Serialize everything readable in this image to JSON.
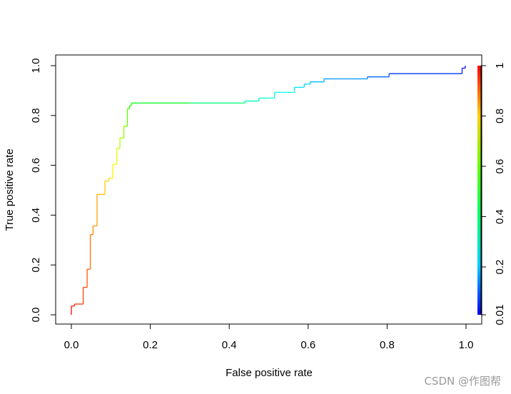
{
  "chart_data": {
    "type": "line",
    "title": "",
    "xlabel": "False positive rate",
    "ylabel": "True positive rate",
    "xlim": [
      0.0,
      1.0
    ],
    "ylim": [
      0.0,
      1.0
    ],
    "x_ticks": [
      "0.0",
      "0.2",
      "0.4",
      "0.6",
      "0.8",
      "1.0"
    ],
    "y_ticks": [
      "0.0",
      "0.2",
      "0.4",
      "0.6",
      "0.8",
      "1.0"
    ],
    "grid": false,
    "legend": "none",
    "colorbar": {
      "position": "right",
      "tick_labels": [
        "0.01",
        "0.2",
        "0.4",
        "0.6",
        "0.8",
        "1"
      ],
      "tick_values": [
        0.01,
        0.2,
        0.4,
        0.6,
        0.8,
        1.0
      ],
      "color_low": "#0000ff",
      "color_high": "#ff0000"
    },
    "series": [
      {
        "points": [
          [
            0.0,
            0.0,
            1.0
          ],
          [
            0.0,
            0.035,
            0.99
          ],
          [
            0.008,
            0.035,
            0.97
          ],
          [
            0.008,
            0.043,
            0.96
          ],
          [
            0.03,
            0.043,
            0.94
          ],
          [
            0.03,
            0.11,
            0.93
          ],
          [
            0.04,
            0.11,
            0.92
          ],
          [
            0.04,
            0.183,
            0.91
          ],
          [
            0.048,
            0.183,
            0.9
          ],
          [
            0.048,
            0.322,
            0.88
          ],
          [
            0.055,
            0.322,
            0.87
          ],
          [
            0.055,
            0.357,
            0.86
          ],
          [
            0.065,
            0.357,
            0.85
          ],
          [
            0.065,
            0.483,
            0.83
          ],
          [
            0.085,
            0.483,
            0.81
          ],
          [
            0.085,
            0.537,
            0.8
          ],
          [
            0.095,
            0.537,
            0.79
          ],
          [
            0.095,
            0.548,
            0.78
          ],
          [
            0.105,
            0.548,
            0.77
          ],
          [
            0.105,
            0.604,
            0.75
          ],
          [
            0.115,
            0.604,
            0.73
          ],
          [
            0.115,
            0.668,
            0.71
          ],
          [
            0.123,
            0.668,
            0.69
          ],
          [
            0.123,
            0.71,
            0.67
          ],
          [
            0.133,
            0.71,
            0.65
          ],
          [
            0.133,
            0.757,
            0.63
          ],
          [
            0.142,
            0.757,
            0.61
          ],
          [
            0.142,
            0.827,
            0.58
          ],
          [
            0.148,
            0.827,
            0.56
          ],
          [
            0.148,
            0.84,
            0.54
          ],
          [
            0.152,
            0.84,
            0.53
          ],
          [
            0.152,
            0.85,
            0.52
          ],
          [
            0.3,
            0.85,
            0.43
          ],
          [
            0.44,
            0.85,
            0.34
          ],
          [
            0.44,
            0.858,
            0.33
          ],
          [
            0.475,
            0.858,
            0.31
          ],
          [
            0.475,
            0.87,
            0.3
          ],
          [
            0.515,
            0.87,
            0.28
          ],
          [
            0.515,
            0.893,
            0.27
          ],
          [
            0.565,
            0.893,
            0.24
          ],
          [
            0.565,
            0.913,
            0.23
          ],
          [
            0.59,
            0.913,
            0.22
          ],
          [
            0.59,
            0.926,
            0.21
          ],
          [
            0.605,
            0.926,
            0.2
          ],
          [
            0.605,
            0.935,
            0.19
          ],
          [
            0.64,
            0.935,
            0.18
          ],
          [
            0.64,
            0.947,
            0.17
          ],
          [
            0.75,
            0.947,
            0.12
          ],
          [
            0.75,
            0.955,
            0.11
          ],
          [
            0.805,
            0.955,
            0.09
          ],
          [
            0.805,
            0.968,
            0.08
          ],
          [
            0.99,
            0.968,
            0.03
          ],
          [
            0.99,
            0.99,
            0.02
          ],
          [
            0.998,
            0.99,
            0.015
          ],
          [
            0.998,
            1.0,
            0.01
          ]
        ]
      }
    ]
  },
  "watermark": "CSDN @作图帮"
}
